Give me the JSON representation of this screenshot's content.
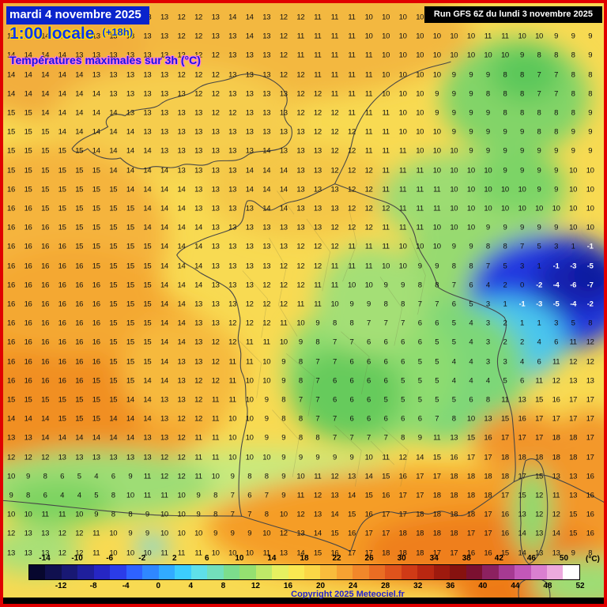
{
  "header": {
    "date_line": "mardi 4 novembre 2025",
    "time_line": "1:00 locale",
    "time_offset": "(+18h)",
    "subtitle": "Températures maximales sur 3h (°C)"
  },
  "run_box": {
    "text": "Run GFS 6Z du lundi 3 novembre 2025"
  },
  "copyright": "Copyright 2025 Meteociel.fr",
  "legend": {
    "unit": "(°C)",
    "min": -16,
    "max": 52,
    "step": 2,
    "top_labels": [
      -14,
      -10,
      -6,
      -2,
      2,
      6,
      10,
      14,
      18,
      22,
      26,
      30,
      34,
      38,
      42,
      46,
      50
    ],
    "bottom_labels": [
      -12,
      -8,
      -4,
      0,
      4,
      8,
      12,
      16,
      20,
      24,
      28,
      32,
      36,
      40,
      44,
      48,
      52
    ],
    "colors": [
      "#07072e",
      "#10104f",
      "#181873",
      "#1f1f9c",
      "#2626c4",
      "#2b3ce8",
      "#2e62ff",
      "#2f87ff",
      "#31abff",
      "#3ccdfd",
      "#5fdfe9",
      "#72dfbb",
      "#7cdd8c",
      "#95e070",
      "#bfe968",
      "#e6f060",
      "#fae951",
      "#fbd746",
      "#f9bc3c",
      "#f6a232",
      "#f1872a",
      "#ea6d23",
      "#df531c",
      "#cf3a16",
      "#b92711",
      "#9e1a0e",
      "#86120f",
      "#7b1030",
      "#8c2160",
      "#a63a92",
      "#c257b8",
      "#da7fd0",
      "#edaade",
      "#ffffff"
    ]
  },
  "map_grid": {
    "rows": [
      "13 13 13 12 12 12 13 13 13 13 12 12 13 14 14 13 12 12 11 11 11 10 10 10 10 10 10 10 10 11 11 10 10 10 10",
      "14 14 14 13 13 13 13 13 13 13 12 12 13 13 14 13 12 11 11 11 11 10 10 10 10 10 10 10 11 11 10 10 9 9 9",
      "14 14 14 14 13 13 13 13 13 13 12 12 12 13 13 13 12 11 11 11 11 11 10 10 10 10 10 10 10 10 9 8 8 8 9",
      "14 14 14 14 14 13 13 13 13 13 12 12 12 13 13 13 12 12 11 11 11 11 10 10 10 10 9 9 9 8 8 7 7 8 8",
      "14 14 14 14 14 14 13 13 13 13 13 12 12 13 13 13 13 12 12 11 11 11 10 10 10 9 9 9 8 8 8 7 7 8 8",
      "15 15 14 14 14 14 14 13 13 13 13 13 12 12 13 13 13 12 12 12 11 11 11 10 10 9 9 9 9 8 8 8 8 8 9",
      "15 15 15 14 14 14 14 14 13 13 13 13 13 13 13 13 13 13 12 12 12 11 11 10 10 10 9 9 9 9 9 8 8 9 9",
      "15 15 15 15 15 14 14 14 14 13 13 13 13 13 13 14 13 13 13 12 12 11 11 11 10 10 10 9 9 9 9 9 9 9 9",
      "15 15 15 15 15 15 14 14 14 14 13 13 13 13 14 14 14 13 13 12 12 12 11 11 11 10 10 10 10 9 9 9 9 10 10",
      "16 15 15 15 15 15 15 14 14 14 14 13 13 13 14 14 14 13 13 13 12 12 11 11 11 11 10 10 10 10 10 9 9 10 10",
      "16 16 15 15 15 15 15 15 14 14 14 13 13 13 13 14 14 13 13 13 12 12 12 11 11 11 10 10 10 10 10 10 10 10 10",
      "16 16 16 15 15 15 15 15 14 14 14 14 13 13 13 13 13 13 13 12 12 12 11 11 11 10 10 10 9 9 9 9 9 10 10",
      "16 16 16 16 15 15 15 15 15 14 14 14 13 13 13 13 13 12 12 12 11 11 11 10 10 10 9 9 8 8 7 5 3 1 -1",
      "16 16 16 16 16 15 15 15 15 14 14 14 13 13 13 13 12 12 12 11 11 11 10 10 9 9 8 8 7 5 3 1 -1 -3 -5",
      "16 16 16 16 16 16 15 15 15 14 14 14 13 13 13 12 12 12 11 11 10 10 9 9 8 8 7 6 4 2 0 -2 -4 -6 -7",
      "16 16 16 16 16 16 15 15 15 14 14 13 13 13 12 12 12 11 11 10 9 9 8 8 7 7 6 5 3 1 -1 -3 -5 -4 -2",
      "16 16 16 16 16 16 15 15 15 14 14 13 13 12 12 12 11 10 9 8 8 7 7 7 6 6 5 4 3 2 1 1 3 5 8",
      "16 16 16 16 16 16 15 15 15 14 14 13 12 12 11 11 10 9 8 7 7 6 6 6 6 5 5 4 3 2 2 4 6 11 12",
      "16 16 16 16 16 16 15 15 15 14 13 13 12 11 11 10 9 8 7 7 6 6 6 6 5 5 4 4 3 3 4 6 11 12 12",
      "16 16 16 16 16 15 15 15 14 14 13 12 12 11 10 10 9 8 7 6 6 6 6 5 5 5 4 4 4 5 6 11 12 13 13",
      "15 15 15 15 15 15 15 14 14 13 13 12 11 11 10 9 8 7 7 6 6 6 5 5 5 5 5 6 8 11 13 15 16 17 17",
      "14 14 14 15 15 15 14 14 14 13 12 12 11 10 10 9 8 8 7 7 6 6 6 6 6 7 8 10 13 15 16 17 17 17 17",
      "13 13 14 14 14 14 14 14 13 13 12 11 11 10 10 9 9 8 8 7 7 7 7 8 9 11 13 15 16 17 17 17 18 18 17",
      "12 12 12 13 13 13 13 13 13 12 12 11 11 10 10 10 9 9 9 9 9 10 11 12 14 15 16 17 17 18 18 18 18 18 17",
      "10 9 8 6 5 4 6 9 11 12 12 11 10 9 8 8 9 10 11 12 13 14 15 16 17 17 18 18 18 18 17 15 13 13 16",
      "9 8 6 4 4 5 8 10 11 11 10 9 8 7 6 7 9 11 12 13 14 15 16 17 17 18 18 18 18 17 15 12 11 13 16",
      "10 10 11 11 10 9 8 8 9 10 10 9 8 7 7 8 10 12 13 14 15 16 17 17 18 18 18 18 17 16 13 12 12 15 16",
      "12 13 13 12 12 11 10 9 9 10 10 10 9 9 9 10 12 13 14 15 16 17 17 18 18 18 18 17 17 16 14 13 14 15 16",
      "13 13 13 12 12 11 10 10 10 11 11 11 10 10 10 11 13 14 15 16 17 17 18 18 18 17 17 16 16 15 14 13 13 9 8"
    ]
  }
}
